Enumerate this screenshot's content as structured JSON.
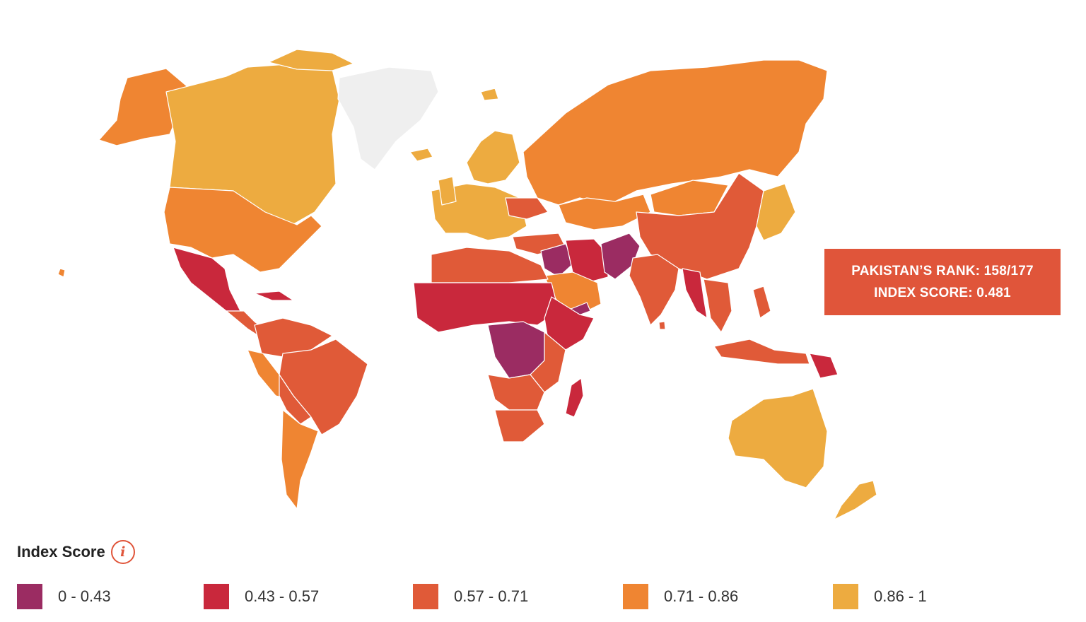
{
  "tooltip": {
    "rank_line": "PAKISTAN’S RANK: 158/177",
    "score_line": "INDEX SCORE: 0.481"
  },
  "legend": {
    "title": "Index Score",
    "info_icon": "info-icon",
    "items": [
      {
        "label": "0 - 0.43",
        "color": "#9b2c62"
      },
      {
        "label": "0.43 - 0.57",
        "color": "#c9283c"
      },
      {
        "label": "0.57 - 0.71",
        "color": "#e05a38"
      },
      {
        "label": "0.71 - 0.86",
        "color": "#ef8532"
      },
      {
        "label": "0.86 - 1",
        "color": "#edab40"
      }
    ]
  },
  "colors": {
    "no_data": "#efefef",
    "tooltip_bg": "#e0553a"
  }
}
